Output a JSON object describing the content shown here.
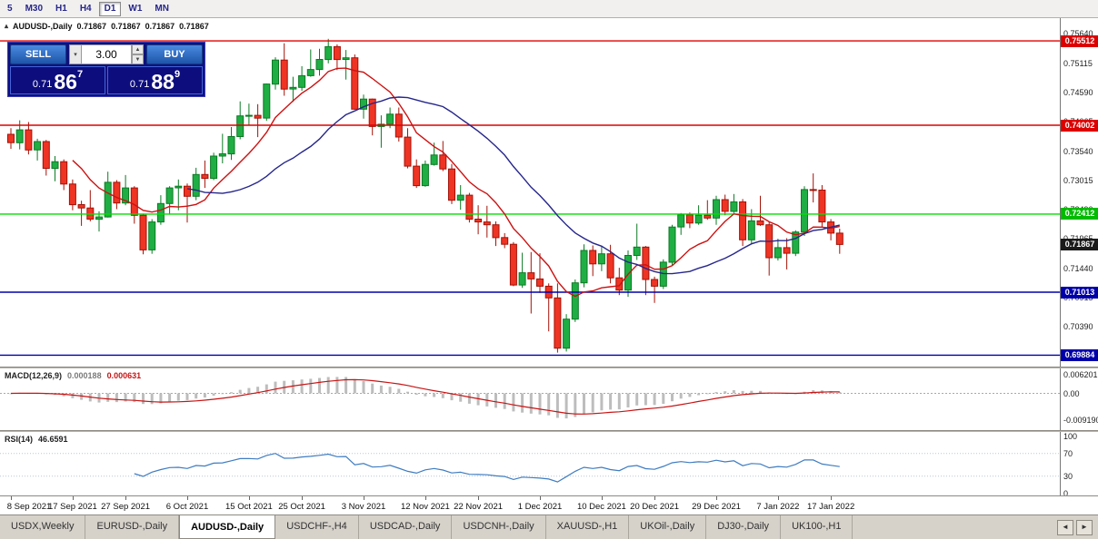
{
  "toolbar": {
    "timeframes": [
      {
        "label": "5",
        "active": false
      },
      {
        "label": "M30",
        "active": false
      },
      {
        "label": "H1",
        "active": false
      },
      {
        "label": "H4",
        "active": false
      },
      {
        "label": "D1",
        "active": true
      },
      {
        "label": "W1",
        "active": false
      },
      {
        "label": "MN",
        "active": false
      }
    ]
  },
  "chart_header": {
    "collapse_icon": "▴",
    "symbol": "AUDUSD-,Daily",
    "open": "0.71867",
    "high": "0.71867",
    "low": "0.71867",
    "close": "0.71867"
  },
  "trade_panel": {
    "sell_label": "SELL",
    "buy_label": "BUY",
    "lot_value": "3.00",
    "sell_price": {
      "prefix": "0.71",
      "big": "86",
      "sup": "7"
    },
    "buy_price": {
      "prefix": "0.71",
      "big": "88",
      "sup": "9"
    }
  },
  "price_axis": {
    "labels": [
      "0.75640",
      "0.75115",
      "0.74590",
      "0.74065",
      "0.73540",
      "0.73015",
      "0.72490",
      "0.71965",
      "0.71440",
      "0.70915",
      "0.70390",
      "0.69865"
    ],
    "badges": [
      {
        "text": "0.75512",
        "value": 0.75512,
        "color": "#dd0000"
      },
      {
        "text": "0.74002",
        "value": 0.74002,
        "color": "#dd0000"
      },
      {
        "text": "0.72412",
        "value": 0.72412,
        "color": "#00bb00"
      },
      {
        "text": "0.71867",
        "value": 0.71867,
        "color": "#1a1a1a"
      },
      {
        "text": "0.71013",
        "value": 0.71013,
        "color": "#0000aa"
      },
      {
        "text": "0.69884",
        "value": 0.69884,
        "color": "#0000aa"
      }
    ]
  },
  "indicators": {
    "macd": {
      "label": "MACD(12,26,9)",
      "value_main": "0.000188",
      "value_signal": "0.000631",
      "axis_labels": [
        {
          "text": "0.006201",
          "value": 0.006201
        },
        {
          "text": "0.00",
          "value": 0
        },
        {
          "text": "-0.009190",
          "value": -0.00919
        }
      ]
    },
    "rsi": {
      "label": "RSI(14)",
      "value": "46.6591",
      "axis_labels": [
        {
          "text": "100",
          "value": 100
        },
        {
          "text": "70",
          "value": 70
        },
        {
          "text": "30",
          "value": 30
        },
        {
          "text": "0",
          "value": 0
        }
      ],
      "levels": [
        70,
        30
      ]
    }
  },
  "date_axis": [
    {
      "i": 0,
      "t": "8 Sep 2021"
    },
    {
      "i": 7,
      "t": "17 Sep 2021"
    },
    {
      "i": 13,
      "t": "27 Sep 2021"
    },
    {
      "i": 20,
      "t": "6 Oct 2021"
    },
    {
      "i": 27,
      "t": "15 Oct 2021"
    },
    {
      "i": 33,
      "t": "25 Oct 2021"
    },
    {
      "i": 40,
      "t": "3 Nov 2021"
    },
    {
      "i": 47,
      "t": "12 Nov 2021"
    },
    {
      "i": 53,
      "t": "22 Nov 2021"
    },
    {
      "i": 60,
      "t": "1 Dec 2021"
    },
    {
      "i": 67,
      "t": "10 Dec 2021"
    },
    {
      "i": 73,
      "t": "20 Dec 2021"
    },
    {
      "i": 80,
      "t": "29 Dec 2021"
    },
    {
      "i": 87,
      "t": "7 Jan 2022"
    },
    {
      "i": 93,
      "t": "17 Jan 2022"
    }
  ],
  "tabs": {
    "items": [
      "USDX,Weekly",
      "EURUSD-,Daily",
      "AUDUSD-,Daily",
      "USDCHF-,H4",
      "USDCAD-,Daily",
      "USDCNH-,Daily",
      "XAUUSD-,H1",
      "UKOil-,Daily",
      "DJ30-,Daily",
      "UK100-,H1"
    ],
    "active_index": 2,
    "scroll_left": "◄",
    "scroll_right": "►"
  },
  "chart_data": {
    "type": "candlestick",
    "symbol": "AUDUSD-",
    "timeframe": "Daily",
    "title": "AUDUSD-,Daily",
    "ylim": [
      0.6968,
      0.7592
    ],
    "colors": {
      "up_fill": "#1fae44",
      "up_stroke": "#0c7a24",
      "down_fill": "#ef3424",
      "down_stroke": "#a31208",
      "ma_fast": "#cc1111",
      "ma_slow": "#26268c",
      "macd_hist": "#bdbdbd",
      "macd_signal": "#c81414",
      "rsi_line": "#3f7cc0"
    },
    "hlines": [
      {
        "value": 0.75512,
        "color": "#dd0000"
      },
      {
        "value": 0.74002,
        "color": "#dd0000"
      },
      {
        "value": 0.72412,
        "color": "#00dd00"
      },
      {
        "value": 0.71013,
        "color": "#0000aa"
      },
      {
        "value": 0.69884,
        "color": "#0000aa"
      }
    ],
    "ma_fast": {
      "type": "sma",
      "period": 8
    },
    "ma_slow": {
      "type": "sma",
      "period": 21
    },
    "macd_params": [
      12,
      26,
      9
    ],
    "rsi_period": 14,
    "current_price": 0.71867,
    "candles": [
      [
        0.7384,
        0.7395,
        0.7358,
        0.7369
      ],
      [
        0.7369,
        0.7409,
        0.7357,
        0.7392
      ],
      [
        0.7392,
        0.7406,
        0.7348,
        0.7356
      ],
      [
        0.7356,
        0.7376,
        0.7337,
        0.7371
      ],
      [
        0.7371,
        0.7374,
        0.731,
        0.7323
      ],
      [
        0.7323,
        0.7345,
        0.73,
        0.7335
      ],
      [
        0.7335,
        0.7339,
        0.7284,
        0.7295
      ],
      [
        0.7295,
        0.7303,
        0.7248,
        0.7258
      ],
      [
        0.7258,
        0.7265,
        0.722,
        0.7252
      ],
      [
        0.7252,
        0.7284,
        0.7228,
        0.7232
      ],
      [
        0.7232,
        0.7246,
        0.721,
        0.7236
      ],
      [
        0.7236,
        0.7317,
        0.7235,
        0.7298
      ],
      [
        0.7298,
        0.7302,
        0.725,
        0.7261
      ],
      [
        0.7261,
        0.7311,
        0.7257,
        0.7288
      ],
      [
        0.7288,
        0.7291,
        0.7224,
        0.7239
      ],
      [
        0.7239,
        0.7242,
        0.7169,
        0.7177
      ],
      [
        0.7177,
        0.7232,
        0.717,
        0.7227
      ],
      [
        0.7227,
        0.7275,
        0.7222,
        0.726
      ],
      [
        0.726,
        0.7291,
        0.724,
        0.7288
      ],
      [
        0.7288,
        0.7303,
        0.7248,
        0.7291
      ],
      [
        0.7291,
        0.7296,
        0.7226,
        0.7273
      ],
      [
        0.7273,
        0.7324,
        0.7266,
        0.7312
      ],
      [
        0.7312,
        0.7337,
        0.7288,
        0.7305
      ],
      [
        0.7305,
        0.7351,
        0.7302,
        0.7345
      ],
      [
        0.7345,
        0.7385,
        0.7332,
        0.7349
      ],
      [
        0.7349,
        0.7397,
        0.7338,
        0.738
      ],
      [
        0.738,
        0.7443,
        0.7375,
        0.7417
      ],
      [
        0.7417,
        0.7439,
        0.74,
        0.7418
      ],
      [
        0.7418,
        0.7438,
        0.7379,
        0.7413
      ],
      [
        0.7413,
        0.7475,
        0.7408,
        0.7474
      ],
      [
        0.7474,
        0.7522,
        0.7464,
        0.7517
      ],
      [
        0.7517,
        0.7547,
        0.7453,
        0.7465
      ],
      [
        0.7465,
        0.7487,
        0.7442,
        0.7468
      ],
      [
        0.7468,
        0.7506,
        0.7462,
        0.7489
      ],
      [
        0.7489,
        0.7536,
        0.7487,
        0.75
      ],
      [
        0.75,
        0.7537,
        0.7489,
        0.7518
      ],
      [
        0.7518,
        0.7555,
        0.7511,
        0.7541
      ],
      [
        0.7541,
        0.7545,
        0.7499,
        0.7518
      ],
      [
        0.7518,
        0.7535,
        0.7482,
        0.7521
      ],
      [
        0.7521,
        0.7527,
        0.7428,
        0.7429
      ],
      [
        0.7429,
        0.7455,
        0.7412,
        0.7447
      ],
      [
        0.7447,
        0.7448,
        0.7382,
        0.7398
      ],
      [
        0.7398,
        0.7418,
        0.736,
        0.7402
      ],
      [
        0.7402,
        0.7432,
        0.7395,
        0.742
      ],
      [
        0.742,
        0.7432,
        0.7371,
        0.7379
      ],
      [
        0.7379,
        0.7395,
        0.7323,
        0.7327
      ],
      [
        0.7327,
        0.7339,
        0.7288,
        0.7292
      ],
      [
        0.7292,
        0.7337,
        0.729,
        0.733
      ],
      [
        0.733,
        0.7369,
        0.7328,
        0.7347
      ],
      [
        0.7347,
        0.7372,
        0.7318,
        0.7322
      ],
      [
        0.7322,
        0.7331,
        0.7259,
        0.7266
      ],
      [
        0.7266,
        0.7293,
        0.7249,
        0.7275
      ],
      [
        0.7275,
        0.7279,
        0.7226,
        0.7232
      ],
      [
        0.7232,
        0.7257,
        0.7205,
        0.7227
      ],
      [
        0.7227,
        0.7256,
        0.7199,
        0.7222
      ],
      [
        0.7222,
        0.7228,
        0.7184,
        0.7199
      ],
      [
        0.7199,
        0.7207,
        0.718,
        0.7187
      ],
      [
        0.7187,
        0.7191,
        0.7112,
        0.7114
      ],
      [
        0.7114,
        0.7172,
        0.7109,
        0.7136
      ],
      [
        0.7136,
        0.7173,
        0.7063,
        0.7125
      ],
      [
        0.7125,
        0.7171,
        0.71,
        0.7112
      ],
      [
        0.7112,
        0.7117,
        0.7031,
        0.7091
      ],
      [
        0.7091,
        0.7117,
        0.6993,
        0.7001
      ],
      [
        0.7001,
        0.7062,
        0.6995,
        0.7053
      ],
      [
        0.7053,
        0.7124,
        0.7048,
        0.7118
      ],
      [
        0.7118,
        0.7187,
        0.711,
        0.7176
      ],
      [
        0.7176,
        0.7185,
        0.713,
        0.7152
      ],
      [
        0.7152,
        0.7183,
        0.7139,
        0.717
      ],
      [
        0.717,
        0.7186,
        0.7117,
        0.7127
      ],
      [
        0.7127,
        0.7145,
        0.7096,
        0.7105
      ],
      [
        0.7105,
        0.7176,
        0.7093,
        0.7167
      ],
      [
        0.7167,
        0.7224,
        0.7159,
        0.7182
      ],
      [
        0.7182,
        0.7184,
        0.7096,
        0.7124
      ],
      [
        0.7124,
        0.7129,
        0.7082,
        0.7112
      ],
      [
        0.7112,
        0.716,
        0.7107,
        0.7155
      ],
      [
        0.7155,
        0.7222,
        0.715,
        0.7218
      ],
      [
        0.7218,
        0.7243,
        0.7204,
        0.724
      ],
      [
        0.724,
        0.7244,
        0.7216,
        0.7225
      ],
      [
        0.7225,
        0.7257,
        0.7222,
        0.7239
      ],
      [
        0.7239,
        0.7266,
        0.7231,
        0.7234
      ],
      [
        0.7234,
        0.7274,
        0.7222,
        0.7267
      ],
      [
        0.7267,
        0.7276,
        0.7239,
        0.7246
      ],
      [
        0.7246,
        0.7277,
        0.7243,
        0.7263
      ],
      [
        0.7263,
        0.7268,
        0.7184,
        0.7195
      ],
      [
        0.7195,
        0.725,
        0.7187,
        0.7229
      ],
      [
        0.7229,
        0.7274,
        0.722,
        0.7222
      ],
      [
        0.7222,
        0.7227,
        0.7131,
        0.7163
      ],
      [
        0.7163,
        0.7197,
        0.7158,
        0.7181
      ],
      [
        0.7181,
        0.7198,
        0.7142,
        0.7171
      ],
      [
        0.7171,
        0.7212,
        0.7166,
        0.7209
      ],
      [
        0.7209,
        0.7291,
        0.7202,
        0.7285
      ],
      [
        0.7285,
        0.7314,
        0.7262,
        0.7284
      ],
      [
        0.7284,
        0.7293,
        0.7218,
        0.7227
      ],
      [
        0.7227,
        0.7232,
        0.7194,
        0.7207
      ],
      [
        0.7207,
        0.7215,
        0.717,
        0.71867
      ]
    ]
  }
}
